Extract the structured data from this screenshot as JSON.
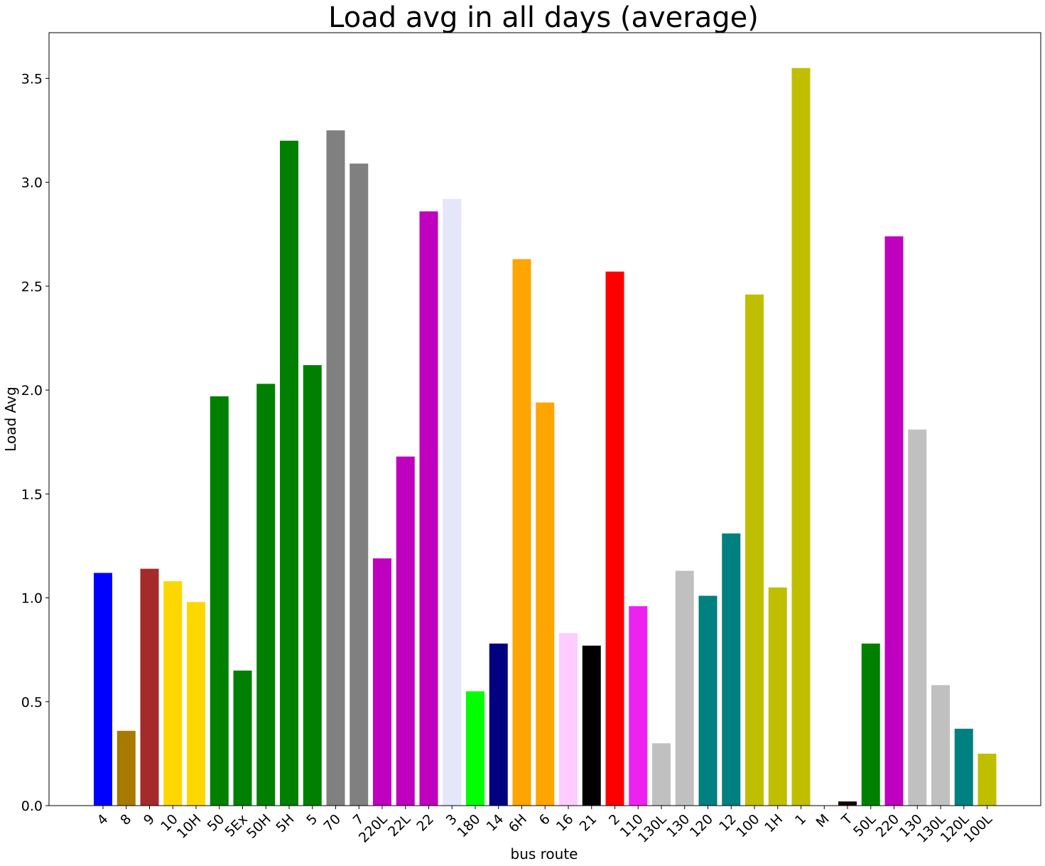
{
  "chart_data": {
    "type": "bar",
    "title": "Load avg in all days (average)",
    "xlabel": "bus route",
    "ylabel": "Load Avg",
    "ylim": [
      0,
      3.72
    ],
    "yticks": [
      0.0,
      0.5,
      1.0,
      1.5,
      2.0,
      2.5,
      3.0,
      3.5
    ],
    "ytick_labels": [
      "0.0",
      "0.5",
      "1.0",
      "1.5",
      "2.0",
      "2.5",
      "3.0",
      "3.5"
    ],
    "grid": false,
    "legend": "none",
    "categories": [
      "4",
      "8",
      "9",
      "10",
      "10H",
      "50",
      "5Ex",
      "50H",
      "5H",
      "5",
      "70",
      "7",
      "220L",
      "22L",
      "22",
      "3",
      "180",
      "14",
      "6H",
      "6",
      "16",
      "21",
      "2",
      "110",
      "130L",
      "130",
      "120",
      "12",
      "100",
      "1H",
      "1",
      "M",
      "T",
      "50L",
      "220",
      "130",
      "130L",
      "120L",
      "100L"
    ],
    "values": [
      1.12,
      0.36,
      1.14,
      1.08,
      0.98,
      1.97,
      0.65,
      2.03,
      3.2,
      2.12,
      3.25,
      3.09,
      1.19,
      1.68,
      2.86,
      2.92,
      0.55,
      0.78,
      2.63,
      1.94,
      0.83,
      0.77,
      2.57,
      0.96,
      0.3,
      1.13,
      1.01,
      1.31,
      2.46,
      1.05,
      3.55,
      0.0,
      0.02,
      0.78,
      2.74,
      1.81,
      0.58,
      0.37,
      0.25
    ],
    "colors": [
      "#0000ff",
      "#a87a00",
      "#a52a2a",
      "#ffd700",
      "#ffd700",
      "#008000",
      "#008000",
      "#008000",
      "#008000",
      "#008000",
      "#808080",
      "#808080",
      "#bf00bf",
      "#bf00bf",
      "#bf00bf",
      "#e6e6fa",
      "#00ff00",
      "#000080",
      "#ffa500",
      "#ffa500",
      "#ffccff",
      "#000000",
      "#ff0000",
      "#ee22ee",
      "#c0c0c0",
      "#c0c0c0",
      "#008080",
      "#008080",
      "#bfbf00",
      "#bfbf00",
      "#bfbf00",
      "#ffffff",
      "#1a0000",
      "#008000",
      "#bf00bf",
      "#c0c0c0",
      "#c0c0c0",
      "#008080",
      "#bfbf00"
    ]
  }
}
